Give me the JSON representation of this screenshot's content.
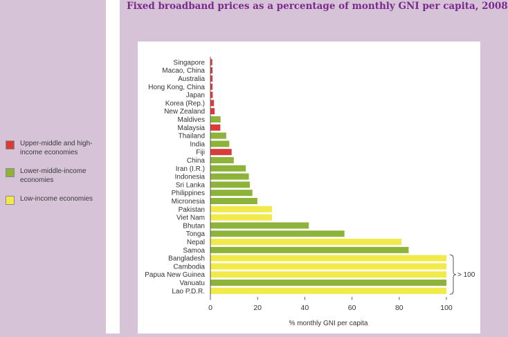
{
  "title": "Fixed broadband prices as a percentage of monthly GNI per capita, 2008",
  "colors": {
    "upper": "#d93a3a",
    "lower": "#8db33a",
    "low": "#f2ea4a",
    "background": "#d6c3d8",
    "title": "#7a2a8c"
  },
  "legend": [
    {
      "key": "upper",
      "label": "Upper-middle and high-income economies"
    },
    {
      "key": "lower",
      "label": "Lower-middle-income economies"
    },
    {
      "key": "low",
      "label": "Low-income economies"
    }
  ],
  "chart_data": {
    "type": "bar",
    "orientation": "horizontal",
    "xlabel": "% monthly GNI per capita",
    "xlim": [
      0,
      100
    ],
    "xticks": [
      0,
      20,
      40,
      60,
      80,
      100
    ],
    "grid": false,
    "overflow_label": "> 100",
    "categories": [
      "Singapore",
      "Macao, China",
      "Australia",
      "Hong Kong, China",
      "Japan",
      "Korea (Rep.)",
      "New Zealand",
      "Maldives",
      "Malaysia",
      "Thailand",
      "India",
      "Fiji",
      "China",
      "Iran (I.R.)",
      "Indonesia",
      "Sri Lanka",
      "Philippines",
      "Micronesia",
      "Pakistan",
      "Viet Nam",
      "Bhutan",
      "Tonga",
      "Nepal",
      "Samoa",
      "Bangladesh",
      "Cambodia",
      "Papua New Guinea",
      "Vanuatu",
      "Lao P.D.R."
    ],
    "values": [
      0.8,
      0.9,
      0.9,
      0.9,
      1.0,
      1.5,
      1.8,
      4.3,
      4.2,
      6.7,
      8.0,
      9.0,
      9.9,
      15.0,
      16.3,
      16.7,
      17.8,
      19.9,
      26.1,
      26.1,
      41.7,
      56.8,
      81.0,
      84.0,
      100,
      100,
      100,
      100,
      100
    ],
    "groups": [
      "upper",
      "upper",
      "upper",
      "upper",
      "upper",
      "upper",
      "upper",
      "lower",
      "upper",
      "lower",
      "lower",
      "upper",
      "lower",
      "lower",
      "lower",
      "lower",
      "lower",
      "lower",
      "low",
      "low",
      "lower",
      "lower",
      "low",
      "lower",
      "low",
      "low",
      "low",
      "lower",
      "low"
    ],
    "overflow": [
      false,
      false,
      false,
      false,
      false,
      false,
      false,
      false,
      false,
      false,
      false,
      false,
      false,
      false,
      false,
      false,
      false,
      false,
      false,
      false,
      false,
      false,
      false,
      false,
      true,
      true,
      true,
      true,
      true
    ]
  }
}
